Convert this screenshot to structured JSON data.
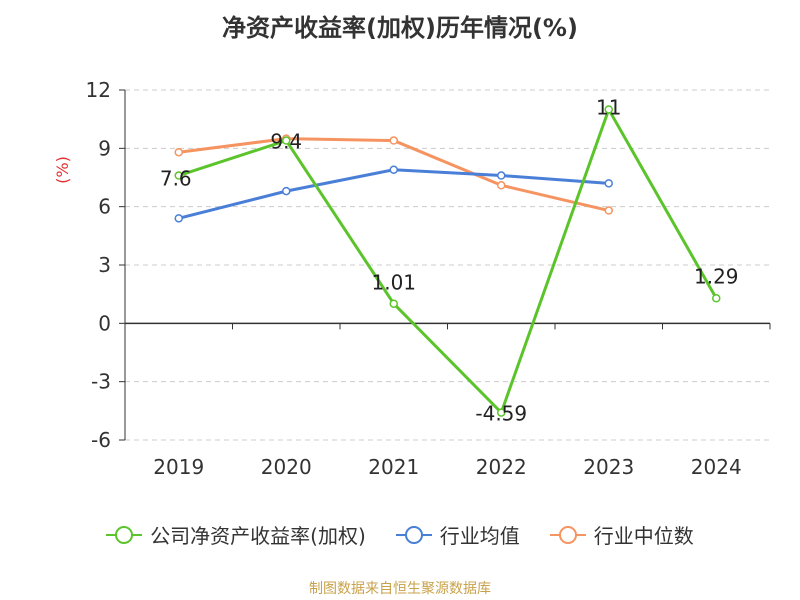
{
  "title": "净资产收益率(加权)历年情况(%)",
  "source": "制图数据来自恒生聚源数据库",
  "legend": [
    {
      "label": "公司净资产收益率(加权)",
      "color": "#5cc42b"
    },
    {
      "label": "行业均值",
      "color": "#4a7fd8"
    },
    {
      "label": "行业中位数",
      "color": "#f59460"
    }
  ],
  "chart_data": {
    "type": "line",
    "x": [
      "2019",
      "2020",
      "2021",
      "2022",
      "2023",
      "2024"
    ],
    "ylabel": "(%)",
    "ylim": [
      -6,
      12
    ],
    "yticks": [
      -6,
      -3,
      0,
      3,
      6,
      9,
      12
    ],
    "grid": true,
    "legend_position": "bottom",
    "series": [
      {
        "name": "公司净资产收益率(加权)",
        "color": "#5cc42b",
        "values": [
          7.6,
          9.4,
          1.01,
          -4.59,
          11,
          1.29
        ],
        "labels": [
          "7.6",
          "9.4",
          "1.01",
          "-4.59",
          "11",
          "1.29"
        ]
      },
      {
        "name": "行业均值",
        "color": "#4a7fd8",
        "values": [
          5.4,
          6.8,
          7.9,
          7.6,
          7.2,
          null
        ]
      },
      {
        "name": "行业中位数",
        "color": "#f59460",
        "values": [
          8.8,
          9.5,
          9.4,
          7.1,
          5.8,
          null
        ]
      }
    ]
  }
}
